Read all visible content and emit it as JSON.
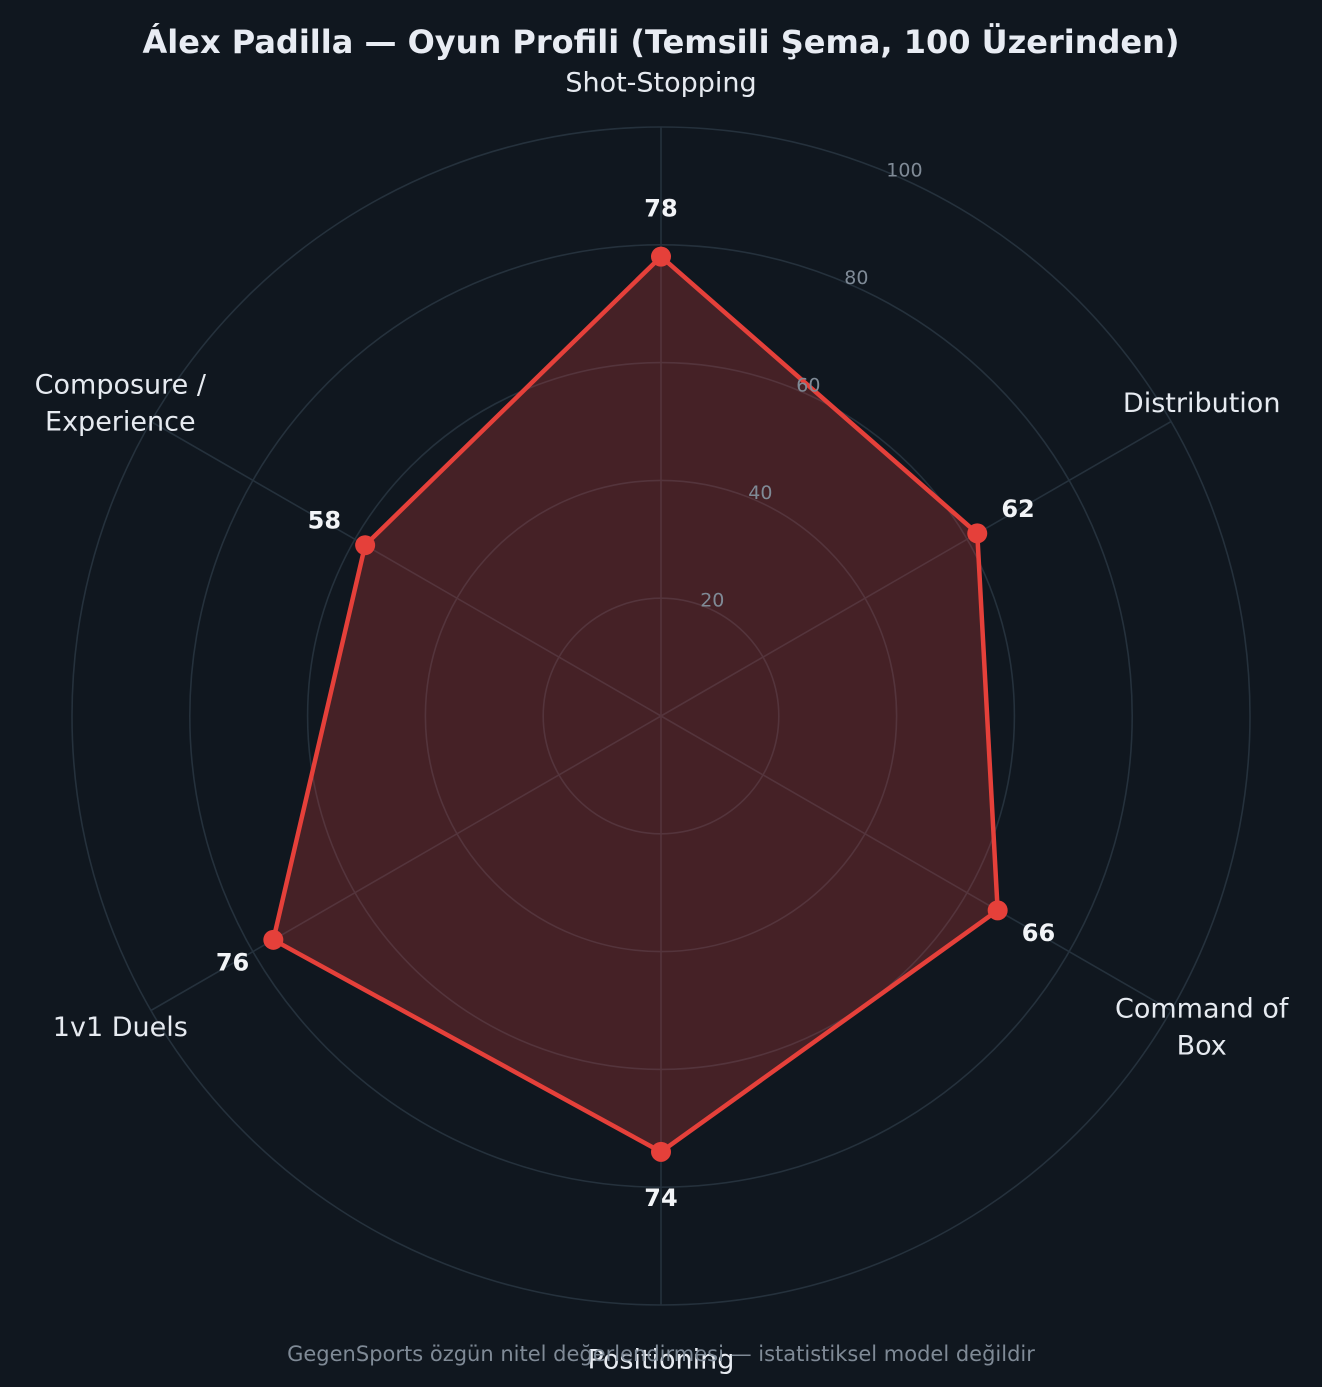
{
  "title": "Álex Padilla — Oyun Profili (Temsili Şema, 100 Üzerinden)",
  "footnote": "GegenSports özgün nitel değerlendirmesi — istatistiksel model değildir",
  "colors": {
    "background": "#10171f",
    "series": "#e5403a",
    "fill": "#4a2025",
    "grid": "#25313c"
  },
  "chart_data": {
    "type": "radar",
    "axes": [
      {
        "lines": [
          "Shot-Stopping"
        ]
      },
      {
        "lines": [
          "Distribution"
        ]
      },
      {
        "lines": [
          "Command of",
          "Box"
        ]
      },
      {
        "lines": [
          "Positioning"
        ]
      },
      {
        "lines": [
          "1v1 Duels"
        ]
      },
      {
        "lines": [
          "Composure /",
          "Experience"
        ]
      }
    ],
    "values": [
      78,
      62,
      66,
      74,
      76,
      58
    ],
    "value_labels": [
      "78",
      "62",
      "66",
      "74",
      "76",
      "58"
    ],
    "rlim": [
      0,
      100
    ],
    "ticks": [
      20,
      40,
      60,
      80,
      100
    ],
    "tick_labels": [
      "20",
      "40",
      "60",
      "80",
      "100"
    ],
    "grid": true
  }
}
